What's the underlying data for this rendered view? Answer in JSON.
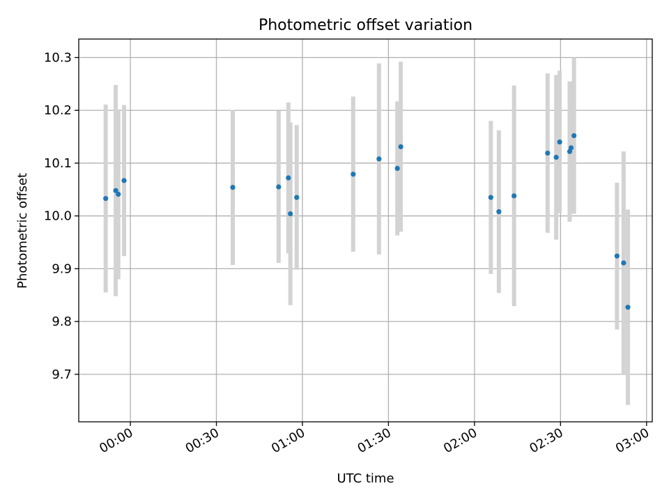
{
  "chart_data": {
    "type": "scatter",
    "title": "Photometric offset variation",
    "xlabel": "UTC time",
    "ylabel": "Photometric offset",
    "x_unit": "minutes after midnight UTC",
    "xlim": [
      -18,
      182
    ],
    "ylim": [
      9.61,
      10.335
    ],
    "grid": true,
    "xticks": [
      {
        "value": 0,
        "label": "00:00"
      },
      {
        "value": 30,
        "label": "00:30"
      },
      {
        "value": 60,
        "label": "01:00"
      },
      {
        "value": 90,
        "label": "01:30"
      },
      {
        "value": 120,
        "label": "02:00"
      },
      {
        "value": 150,
        "label": "02:30"
      },
      {
        "value": 180,
        "label": "03:00"
      }
    ],
    "yticks": [
      {
        "value": 9.7,
        "label": "9.7"
      },
      {
        "value": 9.8,
        "label": "9.8"
      },
      {
        "value": 9.9,
        "label": "9.9"
      },
      {
        "value": 10.0,
        "label": "10.0"
      },
      {
        "value": 10.1,
        "label": "10.1"
      },
      {
        "value": 10.2,
        "label": "10.2"
      },
      {
        "value": 10.3,
        "label": "10.3"
      }
    ],
    "marker_color": "#1f77b4",
    "errorbar_color": "#d3d3d3",
    "points": [
      {
        "x": -8.6,
        "y": 10.033,
        "err": 0.178
      },
      {
        "x": -5.1,
        "y": 10.048,
        "err": 0.2
      },
      {
        "x": -4.2,
        "y": 10.041,
        "err": 0.161
      },
      {
        "x": -2.2,
        "y": 10.067,
        "err": 0.143
      },
      {
        "x": 35.7,
        "y": 10.054,
        "err": 0.147
      },
      {
        "x": 51.7,
        "y": 10.055,
        "err": 0.144
      },
      {
        "x": 55.1,
        "y": 10.072,
        "err": 0.143
      },
      {
        "x": 55.8,
        "y": 10.004,
        "err": 0.173
      },
      {
        "x": 58.0,
        "y": 10.035,
        "err": 0.137
      },
      {
        "x": 77.7,
        "y": 10.079,
        "err": 0.147
      },
      {
        "x": 86.7,
        "y": 10.108,
        "err": 0.181
      },
      {
        "x": 93.1,
        "y": 10.09,
        "err": 0.127
      },
      {
        "x": 94.3,
        "y": 10.131,
        "err": 0.161
      },
      {
        "x": 125.7,
        "y": 10.035,
        "err": 0.145
      },
      {
        "x": 128.5,
        "y": 10.008,
        "err": 0.154
      },
      {
        "x": 133.8,
        "y": 10.038,
        "err": 0.209
      },
      {
        "x": 145.5,
        "y": 10.119,
        "err": 0.151
      },
      {
        "x": 148.5,
        "y": 10.111,
        "err": 0.156
      },
      {
        "x": 149.7,
        "y": 10.14,
        "err": 0.135
      },
      {
        "x": 153.2,
        "y": 10.122,
        "err": 0.133
      },
      {
        "x": 153.7,
        "y": 10.129,
        "err": 0.125
      },
      {
        "x": 154.7,
        "y": 10.152,
        "err": 0.148
      },
      {
        "x": 169.7,
        "y": 9.924,
        "err": 0.139
      },
      {
        "x": 172.0,
        "y": 9.911,
        "err": 0.211
      },
      {
        "x": 173.5,
        "y": 9.827,
        "err": 0.185
      }
    ]
  }
}
